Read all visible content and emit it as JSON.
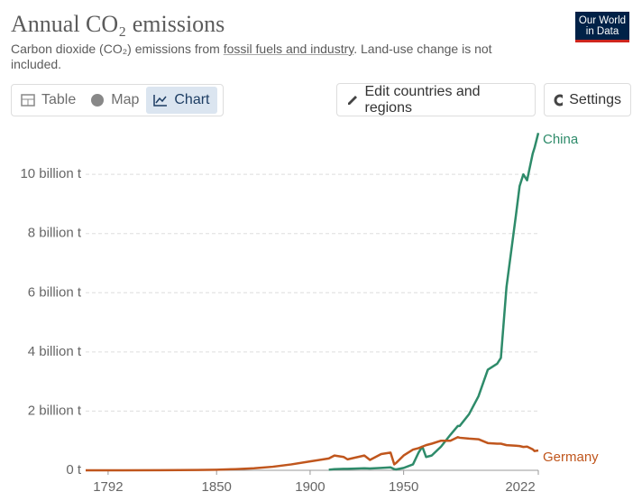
{
  "header": {
    "title": "Annual CO₂ emissions",
    "subtitle": [
      "Carbon dioxide (CO₂) emissions from ",
      "fossil fuels and industry",
      ". Land-use change is not included."
    ],
    "logo": [
      "Our World",
      "in Data"
    ]
  },
  "controls": {
    "tabs": [
      "Table",
      "Map",
      "Chart"
    ],
    "edit": "Edit countries and regions",
    "settings": "Settings"
  },
  "chart_data": {
    "type": "line",
    "x": [
      1780,
      1800,
      1820,
      1840,
      1850,
      1860,
      1870,
      1880,
      1890,
      1900,
      1910,
      1913,
      1918,
      1920,
      1929,
      1932,
      1938,
      1943,
      1945,
      1946,
      1950,
      1955,
      1958,
      1960,
      1962,
      1965,
      1970,
      1975,
      1979,
      1980,
      1985,
      1990,
      1995,
      2000,
      2002,
      2005,
      2010,
      2012,
      2014,
      2016,
      2019,
      2020,
      2022
    ],
    "series": [
      {
        "name": "China",
        "color": "#2e8b6a",
        "values": [
          null,
          null,
          null,
          null,
          null,
          null,
          null,
          null,
          null,
          null,
          20000000,
          40000000,
          50000000,
          50000000,
          70000000,
          60000000,
          80000000,
          100000000,
          40000000,
          30000000,
          80000000,
          200000000,
          600000000,
          800000000,
          450000000,
          500000000,
          800000000,
          1200000000,
          1500000000,
          1500000000,
          1900000000,
          2500000000,
          3400000000,
          3600000000,
          3800000000,
          6200000000,
          8600000000,
          9600000000,
          10000000000,
          9800000000,
          10700000000,
          10900000000,
          11400000000
        ]
      },
      {
        "name": "Germany",
        "color": "#c0561d",
        "values": [
          0,
          1000000,
          3000000,
          10000000,
          20000000,
          40000000,
          70000000,
          120000000,
          200000000,
          300000000,
          400000000,
          500000000,
          450000000,
          370000000,
          500000000,
          350000000,
          550000000,
          600000000,
          200000000,
          250000000,
          500000000,
          700000000,
          750000000,
          800000000,
          850000000,
          900000000,
          1000000000,
          1000000000,
          1120000000,
          1100000000,
          1070000000,
          1050000000,
          920000000,
          900000000,
          900000000,
          850000000,
          830000000,
          820000000,
          790000000,
          800000000,
          710000000,
          650000000,
          670000000
        ]
      }
    ],
    "xlim": [
      1780,
      2022
    ],
    "xticks": [
      1792,
      1850,
      1900,
      1950,
      2022
    ],
    "ylim": [
      0,
      11500000000
    ],
    "yticks": [
      {
        "value": 0,
        "label": "0 t"
      },
      {
        "value": 2000000000,
        "label": "2 billion t"
      },
      {
        "value": 4000000000,
        "label": "4 billion t"
      },
      {
        "value": 6000000000,
        "label": "6 billion t"
      },
      {
        "value": 8000000000,
        "label": "8 billion t"
      },
      {
        "value": 10000000000,
        "label": "10 billion t"
      }
    ],
    "grid": true
  }
}
